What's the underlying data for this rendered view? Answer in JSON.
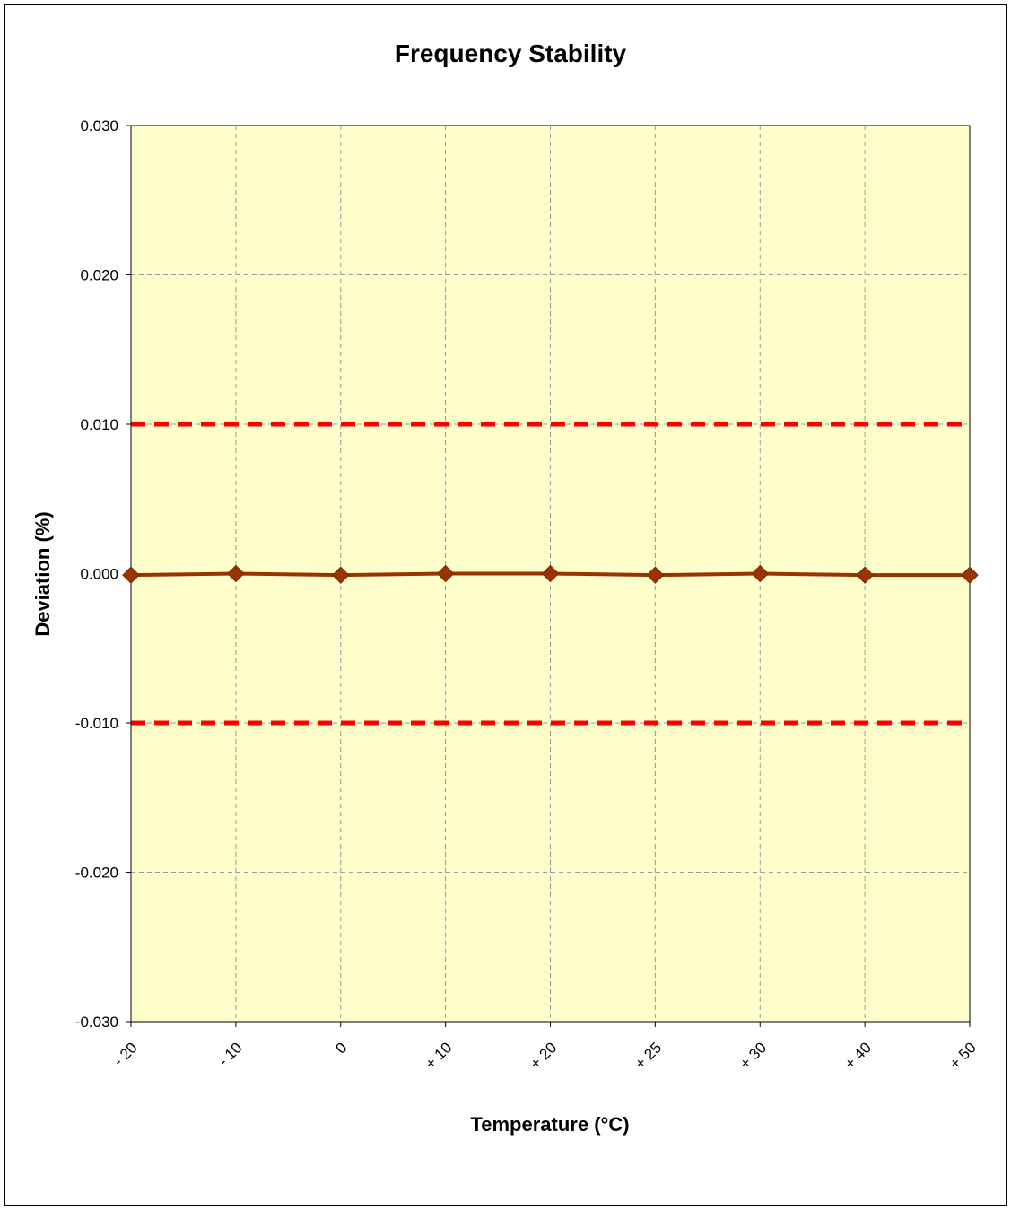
{
  "chart_data": {
    "type": "line",
    "title": "Frequency Stability",
    "xlabel": "Temperature (°C)",
    "ylabel": "Deviation (%)",
    "categories": [
      "- 20",
      "- 10",
      "0",
      "+ 10",
      "+ 20",
      "+ 25",
      "+ 30",
      "+ 40",
      "+ 50"
    ],
    "series": [
      {
        "values": [
          -0.0001,
          0.0,
          -0.0001,
          0.0,
          0.0,
          -0.0001,
          0.0,
          -0.0001,
          -0.0001
        ],
        "color": "#993300"
      }
    ],
    "limits": [
      {
        "value": 0.01,
        "color": "#ff0000"
      },
      {
        "value": -0.01,
        "color": "#ff0000"
      }
    ],
    "ylim": [
      -0.03,
      0.03
    ],
    "yticks": [
      0.03,
      0.02,
      0.01,
      0.0,
      -0.01,
      -0.02,
      -0.03
    ],
    "ytick_labels": [
      "0.030",
      "0.020",
      "0.010",
      "0.000",
      "-0.010",
      "-0.020",
      "-0.030"
    ],
    "grid": true,
    "colors": {
      "plot_background": "#ffffcc",
      "grid": "#999999",
      "series": "#993300",
      "limit": "#ff0000"
    }
  }
}
